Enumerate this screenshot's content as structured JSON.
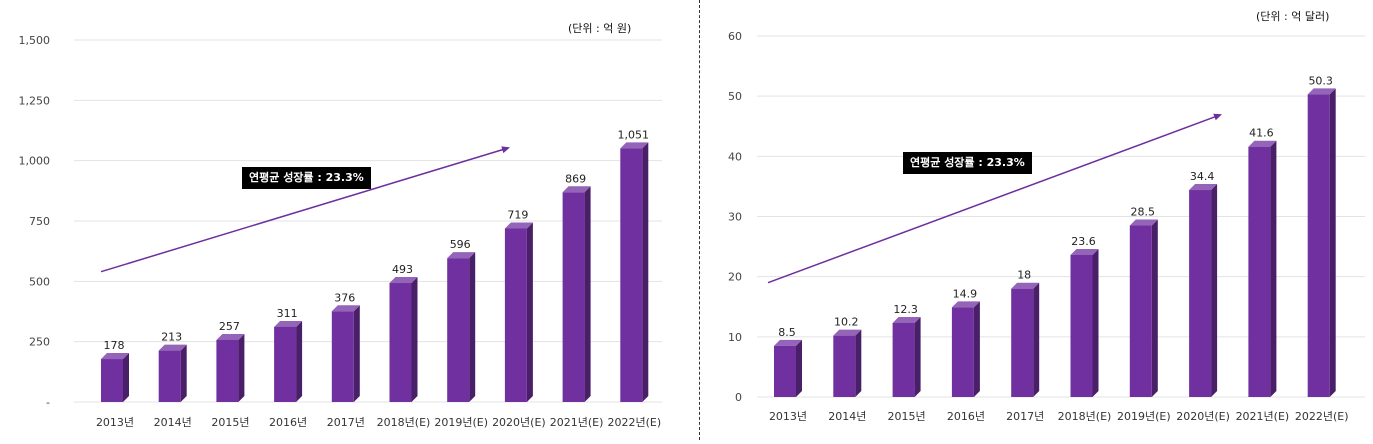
{
  "chart_data": [
    {
      "type": "bar",
      "unit_label": "(단위 : 억 원)",
      "cagr_label": "연평균 성장률 : 23.3%",
      "categories": [
        "2013년",
        "2014년",
        "2015년",
        "2016년",
        "2017년",
        "2018년(E)",
        "2019년(E)",
        "2020년(E)",
        "2021년(E)",
        "2022년(E)"
      ],
      "values": [
        178,
        213,
        257,
        311,
        376,
        493,
        596,
        719,
        869,
        1051
      ],
      "value_labels": [
        "178",
        "213",
        "257",
        "311",
        "376",
        "493",
        "596",
        "719",
        "869",
        "1,051"
      ],
      "yticks": [
        0,
        250,
        500,
        750,
        1000,
        1250,
        1500
      ],
      "ytick_labels": [
        "-",
        "250",
        "500",
        "750",
        "1,000",
        "1,250",
        "1,500"
      ],
      "ylim": [
        0,
        1500
      ],
      "trend_start": 540,
      "trend_end": 1055,
      "bar_color": "#7030a0"
    },
    {
      "type": "bar",
      "unit_label": "(단위 : 억 달러)",
      "cagr_label": "연평균 성장률 : 23.3%",
      "categories": [
        "2013년",
        "2014년",
        "2015년",
        "2016년",
        "2017년",
        "2018년(E)",
        "2019년(E)",
        "2020년(E)",
        "2021년(E)",
        "2022년(E)"
      ],
      "values": [
        8.5,
        10.2,
        12.3,
        14.9,
        18,
        23.6,
        28.5,
        34.4,
        41.6,
        50.3
      ],
      "value_labels": [
        "8.5",
        "10.2",
        "12.3",
        "14.9",
        "18",
        "23.6",
        "28.5",
        "34.4",
        "41.6",
        "50.3"
      ],
      "yticks": [
        0,
        10,
        20,
        30,
        40,
        50,
        60
      ],
      "ytick_labels": [
        "0",
        "10",
        "20",
        "30",
        "40",
        "50",
        "60"
      ],
      "ylim": [
        0,
        60
      ],
      "trend_start": 19,
      "trend_end": 47,
      "bar_color": "#7030a0"
    }
  ]
}
